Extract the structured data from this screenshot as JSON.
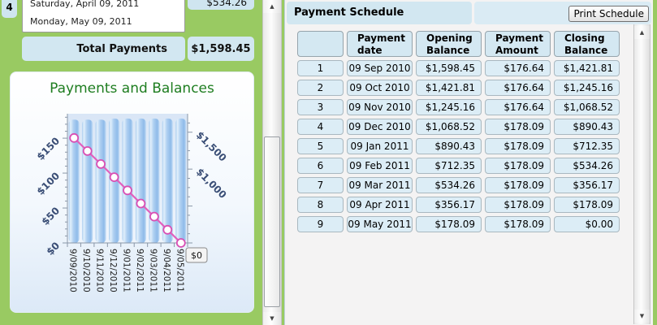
{
  "colors": {
    "page_background": "#99CA62",
    "widget_blue": "#CFE5F0",
    "table_cell_blue": "#DCEDF6",
    "chart_title_green": "#1E7D20",
    "line_pink": "#E25FBC",
    "bar_blue": "#8FBCEA",
    "axis_text_navy": "#3A4E76"
  },
  "left_panel": {
    "row_number": "4",
    "date_line1": "Saturday, April 09, 2011",
    "date_line2": "Monday, May 09, 2011",
    "amount": "$534.26",
    "total_label": "Total Payments",
    "total_value": "$1,598.45"
  },
  "chart_data": {
    "type": "bar+line",
    "title": "Payments and Balances",
    "x": [
      "9/09/2010",
      "9/10/2010",
      "9/11/2010",
      "9/12/2010",
      "9/01/2011",
      "9/02/2011",
      "9/03/2011",
      "9/04/2011",
      "9/05/2011"
    ],
    "series": [
      {
        "name": "Payment Amount",
        "type": "bar",
        "axis": "left",
        "values": [
          176.64,
          176.64,
          176.64,
          178.09,
          178.09,
          178.09,
          178.09,
          178.09,
          178.09
        ]
      },
      {
        "name": "Closing Balance",
        "type": "line",
        "axis": "right",
        "values": [
          1421.81,
          1245.16,
          1068.52,
          890.43,
          712.35,
          534.26,
          356.17,
          178.09,
          0.0
        ]
      }
    ],
    "left_axis": {
      "max": 185,
      "minor": 10,
      "major": 50,
      "ticks": [
        {
          "v": 0,
          "label": "$0"
        },
        {
          "v": 50,
          "label": "$50"
        },
        {
          "v": 100,
          "label": "$100"
        },
        {
          "v": 150,
          "label": "$150"
        }
      ]
    },
    "right_axis": {
      "max": 1750,
      "minor": 125,
      "major": 500,
      "ticks": [
        {
          "v": 1000,
          "label": "$1,000"
        },
        {
          "v": 1500,
          "label": "$1,500"
        }
      ],
      "boxed_zero": "$0"
    },
    "grid": false,
    "legend": "none"
  },
  "schedule": {
    "title": "Payment Schedule",
    "print_button": "Print Schedule",
    "columns": [
      "",
      "Payment date",
      "Opening Balance",
      "Payment Amount",
      "Closing Balance"
    ],
    "rows": [
      [
        "1",
        "09 Sep 2010",
        "$1,598.45",
        "$176.64",
        "$1,421.81"
      ],
      [
        "2",
        "09 Oct 2010",
        "$1,421.81",
        "$176.64",
        "$1,245.16"
      ],
      [
        "3",
        "09 Nov 2010",
        "$1,245.16",
        "$176.64",
        "$1,068.52"
      ],
      [
        "4",
        "09 Dec 2010",
        "$1,068.52",
        "$178.09",
        "$890.43"
      ],
      [
        "5",
        "09 Jan 2011",
        "$890.43",
        "$178.09",
        "$712.35"
      ],
      [
        "6",
        "09 Feb 2011",
        "$712.35",
        "$178.09",
        "$534.26"
      ],
      [
        "7",
        "09 Mar 2011",
        "$534.26",
        "$178.09",
        "$356.17"
      ],
      [
        "8",
        "09 Apr 2011",
        "$356.17",
        "$178.09",
        "$178.09"
      ],
      [
        "9",
        "09 May 2011",
        "$178.09",
        "$178.09",
        "$0.00"
      ]
    ]
  },
  "icons": {
    "scroll_up": "▲",
    "scroll_down": "▼"
  }
}
